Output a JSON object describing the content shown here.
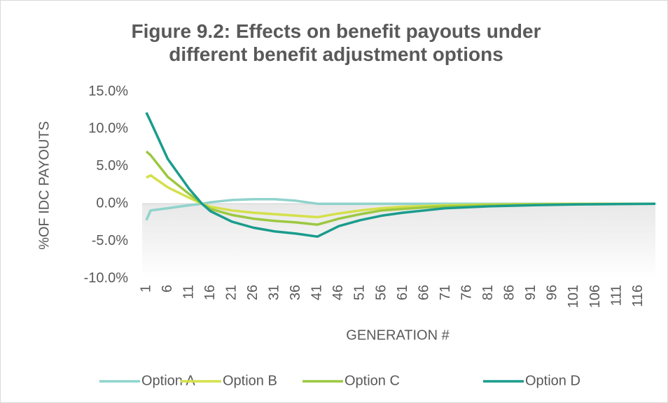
{
  "chart_data": {
    "type": "line",
    "title": "Figure 9.2: Effects on benefit payouts under different benefit adjustment options",
    "y_label": "%OF IDC PAYOUTS",
    "x_label": "GENERATION #",
    "x": [
      1,
      2,
      6,
      11,
      14,
      16,
      21,
      26,
      31,
      36,
      41,
      46,
      51,
      56,
      61,
      66,
      71,
      81,
      91,
      101,
      120
    ],
    "xlim": [
      1,
      120
    ],
    "xticks": [
      1,
      6,
      11,
      16,
      21,
      26,
      31,
      36,
      41,
      46,
      51,
      56,
      61,
      66,
      71,
      76,
      81,
      86,
      91,
      96,
      101,
      106,
      111,
      116
    ],
    "ylim": [
      -10,
      15
    ],
    "yticks": [
      {
        "value": -10,
        "label": "-10.0%"
      },
      {
        "value": -5,
        "label": "-5.0%"
      },
      {
        "value": 0,
        "label": "0.0%"
      },
      {
        "value": 5,
        "label": "5.0%"
      },
      {
        "value": 10,
        "label": "10.0%"
      },
      {
        "value": 15,
        "label": "15.0%"
      }
    ],
    "legend": "bottom",
    "series": [
      {
        "name": "Option A",
        "color": "#8fd3cc",
        "values": [
          -2.2,
          -0.9,
          -0.6,
          -0.2,
          0,
          0.2,
          0.5,
          0.6,
          0.6,
          0.4,
          0,
          0,
          0,
          0,
          0,
          0,
          0,
          0,
          0,
          0,
          0
        ]
      },
      {
        "name": "Option B",
        "color": "#d4e04a",
        "values": [
          3.5,
          3.8,
          2.2,
          0.8,
          0,
          -0.4,
          -0.9,
          -1.2,
          -1.4,
          -1.6,
          -1.8,
          -1.3,
          -0.9,
          -0.6,
          -0.4,
          -0.3,
          -0.2,
          -0.1,
          -0.05,
          0,
          0
        ]
      },
      {
        "name": "Option C",
        "color": "#9cc840",
        "values": [
          7.0,
          6.5,
          3.6,
          1.3,
          0,
          -0.7,
          -1.5,
          -2.0,
          -2.3,
          -2.5,
          -2.8,
          -2.0,
          -1.4,
          -0.9,
          -0.7,
          -0.5,
          -0.35,
          -0.2,
          -0.1,
          -0.05,
          0
        ]
      },
      {
        "name": "Option D",
        "color": "#1a9c8c",
        "values": [
          12.2,
          11.0,
          6.0,
          2.0,
          0,
          -1.0,
          -2.4,
          -3.2,
          -3.7,
          -4.0,
          -4.4,
          -3.0,
          -2.2,
          -1.6,
          -1.2,
          -0.9,
          -0.6,
          -0.35,
          -0.2,
          -0.1,
          0
        ]
      }
    ]
  }
}
